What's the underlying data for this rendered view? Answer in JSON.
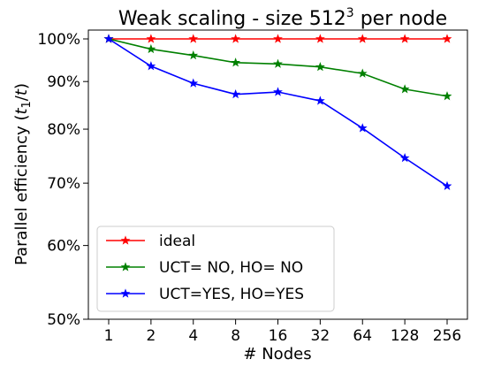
{
  "chart_data": {
    "type": "line",
    "title": "Weak scaling - size 512",
    "title_superscript": "3",
    "title_suffix": " per node",
    "xlabel": "# Nodes",
    "ylabel_prefix": "Parallel efficiency (",
    "ylabel_var1": "t",
    "ylabel_sub": "1",
    "ylabel_mid": "/",
    "ylabel_var2": "t",
    "ylabel_suffix": ")",
    "x_scale": "log2",
    "y_scale": "log",
    "categories": [
      "1",
      "2",
      "4",
      "8",
      "16",
      "32",
      "64",
      "128",
      "256"
    ],
    "x": [
      1,
      2,
      4,
      8,
      16,
      32,
      64,
      128,
      256
    ],
    "ylim": [
      0.5,
      1.0
    ],
    "y_ticks": [
      0.5,
      0.6,
      0.7,
      0.8,
      0.9,
      1.0
    ],
    "y_tick_labels": [
      "50%",
      "60%",
      "70%",
      "80%",
      "90%",
      "100%"
    ],
    "grid": false,
    "legend_position": "lower-left",
    "series": [
      {
        "name": "ideal",
        "color": "#ff0000",
        "values": [
          1.0,
          1.0,
          1.0,
          1.0,
          1.0,
          1.0,
          1.0,
          1.0,
          1.0
        ]
      },
      {
        "name": "UCT= NO, HO= NO",
        "color": "#008000",
        "values": [
          1.0,
          0.975,
          0.96,
          0.943,
          0.94,
          0.933,
          0.918,
          0.883,
          0.868
        ]
      },
      {
        "name": "UCT=YES, HO=YES",
        "color": "#0000ff",
        "values": [
          1.0,
          0.935,
          0.896,
          0.872,
          0.877,
          0.858,
          0.802,
          0.745,
          0.695
        ]
      }
    ]
  }
}
